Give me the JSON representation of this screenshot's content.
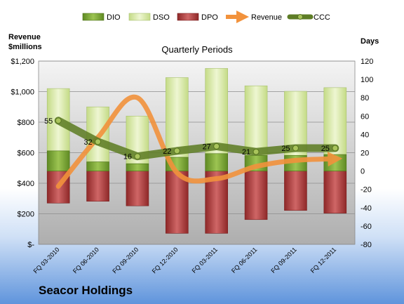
{
  "chart_data": {
    "type": "bar",
    "title": "Quarterly Periods",
    "y_left_label": [
      "Revenue",
      "$millions"
    ],
    "y_right_label": "Days",
    "categories": [
      "FQ 03-2010",
      "FQ 06-2010",
      "FQ 09-2010",
      "FQ 12-2010",
      "FQ 03-2011",
      "FQ 06-2011",
      "FQ 09-2011",
      "FQ 12-2011"
    ],
    "y_left_range": [
      0,
      1200
    ],
    "y_left_ticks": [
      "$-",
      "$200",
      "$400",
      "$600",
      "$800",
      "$1,000",
      "$1,200"
    ],
    "y_right_range": [
      -80,
      120
    ],
    "y_right_ticks": [
      "-80",
      "-60",
      "-40",
      "-20",
      "0",
      "20",
      "40",
      "60",
      "80",
      "100",
      "120"
    ],
    "legend_position": "top",
    "series": [
      {
        "name": "DIO",
        "axis": "right",
        "color": "#7aa23a",
        "values": [
          22,
          10,
          8,
          15,
          19,
          17,
          17,
          18
        ]
      },
      {
        "name": "DSO",
        "axis": "right",
        "color": "#d7e8a8",
        "values": [
          68,
          60,
          52,
          87,
          93,
          76,
          70,
          73
        ]
      },
      {
        "name": "DPO",
        "axis": "right",
        "color": "#b03a3a",
        "values": [
          -35,
          -33,
          -38,
          -68,
          -68,
          -53,
          -43,
          -46
        ]
      },
      {
        "name": "Revenue",
        "axis": "left",
        "color": "#f2923c",
        "values": [
          380,
          700,
          960,
          470,
          430,
          510,
          550,
          560
        ]
      },
      {
        "name": "CCC",
        "axis": "right",
        "color": "#6a8a2e",
        "values": [
          55,
          32,
          16,
          22,
          27,
          21,
          25,
          25
        ]
      }
    ],
    "ccc_labels": [
      "55",
      "32",
      "16",
      "22",
      "27",
      "21",
      "25",
      "25"
    ]
  },
  "footer": {
    "company": "Seacor Holdings"
  }
}
